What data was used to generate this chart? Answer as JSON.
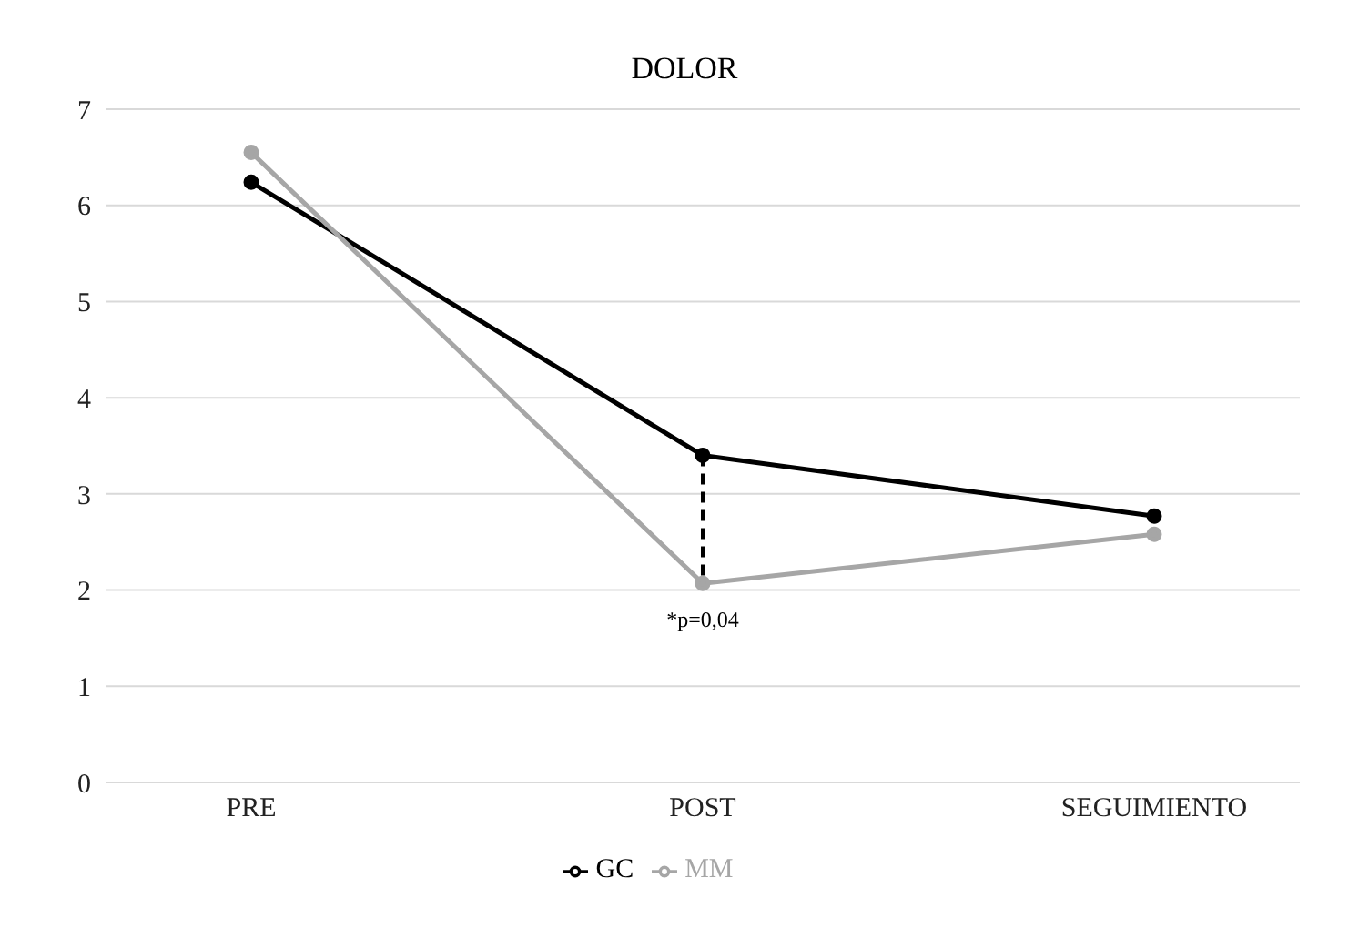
{
  "chart_data": {
    "type": "line",
    "title": "DOLOR",
    "categories": [
      "PRE",
      "POST",
      "SEGUIMIENTO"
    ],
    "series": [
      {
        "name": "GC",
        "color": "#000000",
        "values": [
          6.24,
          3.4,
          2.77
        ]
      },
      {
        "name": "MM",
        "color": "#a6a6a6",
        "values": [
          6.55,
          2.07,
          2.58
        ]
      }
    ],
    "ylim": [
      0,
      7
    ],
    "yticks": [
      0,
      1,
      2,
      3,
      4,
      5,
      6,
      7
    ],
    "grid": "y",
    "legend": "bottom",
    "marker": "circle",
    "line_style": "solid",
    "annotations": [
      {
        "text": "*p=0,04",
        "x": "POST",
        "y": 2.07
      }
    ]
  }
}
